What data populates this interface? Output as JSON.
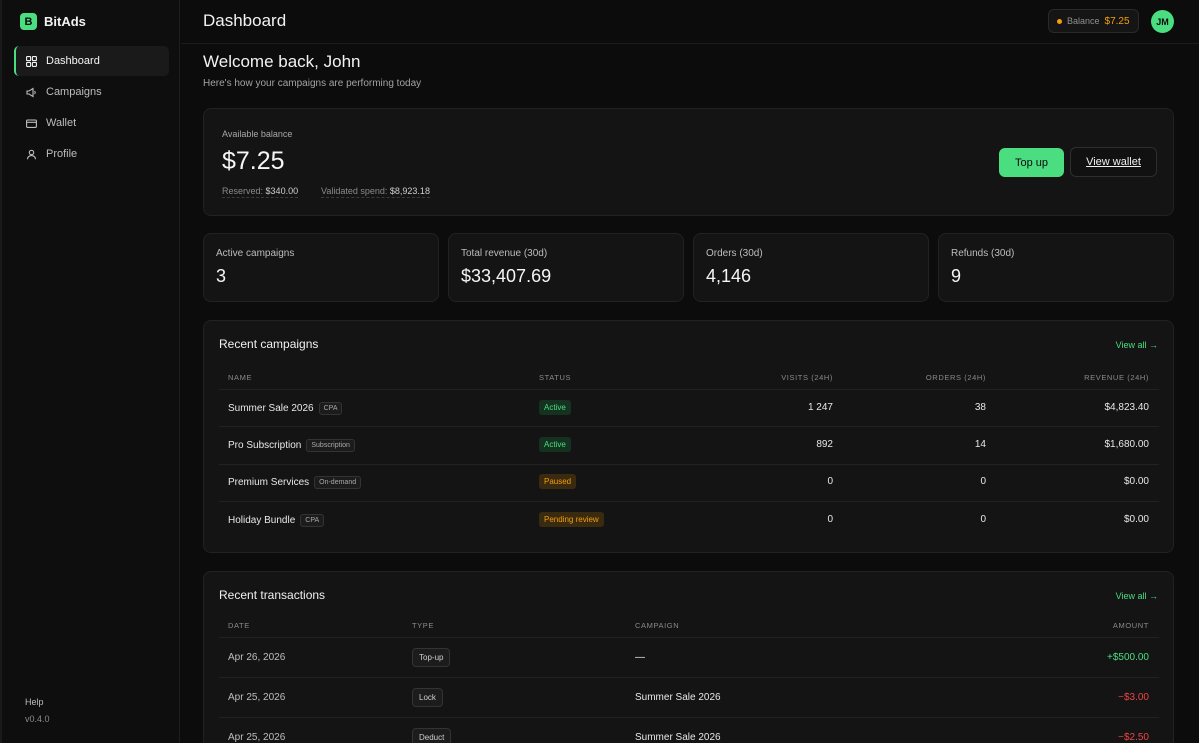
{
  "brand": {
    "logo_letter": "B",
    "name": "BitAds"
  },
  "sidebar": {
    "items": [
      {
        "label": "Dashboard",
        "icon": "grid-icon"
      },
      {
        "label": "Campaigns",
        "icon": "megaphone-icon"
      },
      {
        "label": "Wallet",
        "icon": "wallet-icon"
      },
      {
        "label": "Profile",
        "icon": "user-icon"
      }
    ],
    "help": "Help",
    "version": "v0.4.0"
  },
  "header": {
    "title": "Dashboard",
    "balance_label": "Balance",
    "balance_value": "$7.25",
    "avatar_initials": "JM"
  },
  "welcome": {
    "title": "Welcome back, John",
    "subtitle": "Here's how your campaigns are performing today"
  },
  "balance_card": {
    "label": "Available balance",
    "amount": "$7.25",
    "reserved_label": "Reserved:",
    "reserved_value": "$340.00",
    "validated_label": "Validated spend:",
    "validated_value": "$8,923.18",
    "topup_label": "Top up",
    "view_wallet_label": "View wallet"
  },
  "stats": [
    {
      "label": "Active campaigns",
      "value": "3"
    },
    {
      "label": "Total revenue (30d)",
      "value": "$33,407.69"
    },
    {
      "label": "Orders (30d)",
      "value": "4,146"
    },
    {
      "label": "Refunds (30d)",
      "value": "9"
    }
  ],
  "campaigns": {
    "title": "Recent campaigns",
    "view_all": "View all →",
    "headers": [
      "Name",
      "Status",
      "Visits (24h)",
      "Orders (24h)",
      "Revenue (24h)"
    ],
    "rows": [
      {
        "name": "Summer Sale 2026",
        "tag": "CPA",
        "status": "Active",
        "visits": "1 247",
        "orders": "38",
        "revenue": "$4,823.40"
      },
      {
        "name": "Pro Subscription",
        "tag": "Subscription",
        "status": "Active",
        "visits": "892",
        "orders": "14",
        "revenue": "$1,680.00"
      },
      {
        "name": "Premium Services",
        "tag": "On-demand",
        "status": "Paused",
        "visits": "0",
        "orders": "0",
        "revenue": "$0.00"
      },
      {
        "name": "Holiday Bundle",
        "tag": "CPA",
        "status": "Pending review",
        "visits": "0",
        "orders": "0",
        "revenue": "$0.00"
      }
    ]
  },
  "transactions": {
    "title": "Recent transactions",
    "view_all": "View all →",
    "headers": [
      "Date",
      "Type",
      "Campaign",
      "Amount"
    ],
    "rows": [
      {
        "date": "Apr 26, 2026",
        "type": "Top-up",
        "campaign": "—",
        "amount": "+$500.00"
      },
      {
        "date": "Apr 25, 2026",
        "type": "Lock",
        "campaign": "Summer Sale 2026",
        "amount": "−$3.00"
      },
      {
        "date": "Apr 25, 2026",
        "type": "Deduct",
        "campaign": "Summer Sale 2026",
        "amount": "−$2.50"
      }
    ]
  },
  "colors": {
    "accent": "#4ade80",
    "warning": "#f59e0b",
    "danger": "#ef4444",
    "background": "#0c0c0c",
    "card": "#141414"
  }
}
